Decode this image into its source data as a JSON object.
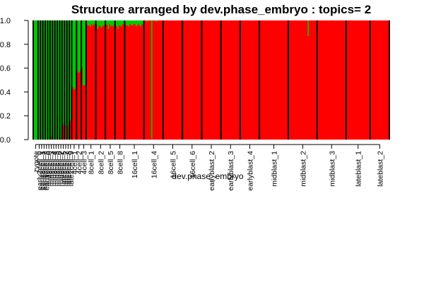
{
  "chart_data": {
    "type": "bar",
    "stacked": true,
    "title": "Structure arranged by dev.phase_embryo : topics= 2",
    "xlabel": "dev.phase_embryo",
    "ylabel": "",
    "ylim": [
      0,
      1
    ],
    "yticks": [
      "0.0",
      "0.2",
      "0.4",
      "0.6",
      "0.8",
      "1.0"
    ],
    "colors": {
      "topic1": "#ff0000",
      "topic2": "#00c800",
      "separator": "#000000"
    },
    "series": [
      {
        "name": ""
      },
      {
        "name": ""
      }
    ],
    "groups": [
      {
        "label": "zygote",
        "n": 4
      },
      {
        "label": "early2cell_0",
        "n": 2
      },
      {
        "label": "early2cell_1",
        "n": 2
      },
      {
        "label": "early2cell_2",
        "n": 2
      },
      {
        "label": "early2cell_3",
        "n": 2
      },
      {
        "label": "mid2cell_0",
        "n": 2
      },
      {
        "label": "mid2cell_3",
        "n": 2
      },
      {
        "label": "mid2cell_4",
        "n": 2
      },
      {
        "label": "mid2cell_5",
        "n": 2
      },
      {
        "label": "mid2cell_6",
        "n": 2
      },
      {
        "label": "mid2cell_7",
        "n": 2
      },
      {
        "label": "late2cell_5",
        "n": 2
      },
      {
        "label": "late2cell_7",
        "n": 2
      },
      {
        "label": "late2cell_8",
        "n": 2
      },
      {
        "label": "late2cell_9",
        "n": 2
      },
      {
        "label": "4cell_1",
        "n": 4
      },
      {
        "label": "4cell_2",
        "n": 4
      },
      {
        "label": "4cell_3",
        "n": 4
      },
      {
        "label": "8cell_1",
        "n": 8
      },
      {
        "label": "8cell_2",
        "n": 8
      },
      {
        "label": "8cell_5",
        "n": 8
      },
      {
        "label": "8cell_8",
        "n": 8
      },
      {
        "label": "16cell_1",
        "n": 16
      },
      {
        "label": "16cell_4",
        "n": 16
      },
      {
        "label": "16cell_5",
        "n": 16
      },
      {
        "label": "16cell_6",
        "n": 16
      },
      {
        "label": "earlyblast_2",
        "n": 16
      },
      {
        "label": "earlyblast_3",
        "n": 16
      },
      {
        "label": "earlyblast_4",
        "n": 16
      },
      {
        "label": "midblast_1",
        "n": 24
      },
      {
        "label": "midblast_2",
        "n": 24
      },
      {
        "label": "midblast_3",
        "n": 24
      },
      {
        "label": "lateblast_1",
        "n": 20
      },
      {
        "label": "lateblast_2",
        "n": 16
      }
    ],
    "topic1_by_group": [
      [
        0.0,
        0.0,
        0.0,
        0.0
      ],
      [
        0.0,
        0.0
      ],
      [
        0.0,
        0.0
      ],
      [
        0.0,
        0.0
      ],
      [
        0.0,
        0.0
      ],
      [
        0.0,
        0.0
      ],
      [
        0.0,
        0.03
      ],
      [
        0.0,
        0.0
      ],
      [
        0.0,
        0.0
      ],
      [
        0.0,
        0.0
      ],
      [
        0.02,
        0.0
      ],
      [
        0.13,
        0.11
      ],
      [
        0.12,
        0.0
      ],
      [
        0.12,
        0.0
      ],
      [
        0.17,
        0.15
      ],
      [
        0.42,
        0.44,
        0.42,
        0.43
      ],
      [
        0.58,
        0.56,
        0.57,
        0.59
      ],
      [
        0.61,
        0.46,
        0.46,
        0.45
      ],
      [
        0.97,
        0.96,
        0.96,
        0.95,
        0.97,
        0.96,
        0.97,
        0.95
      ],
      [
        0.97,
        0.93,
        0.95,
        0.96,
        0.94,
        0.95,
        0.96,
        0.96
      ],
      [
        0.97,
        0.96,
        0.93,
        0.97,
        0.95,
        0.96,
        0.95,
        0.97
      ],
      [
        0.96,
        0.95,
        0.93,
        0.96,
        0.96,
        0.95,
        0.97,
        0.96
      ],
      [
        0.97,
        0.96,
        0.96,
        0.95,
        0.97,
        0.96,
        0.96,
        0.97,
        0.97,
        0.95,
        0.96,
        0.97,
        0.96,
        0.95,
        0.97,
        0.96
      ],
      [
        1.0,
        1.0,
        0.99,
        1.0,
        1.0,
        1.0,
        0.01,
        1.0,
        1.0,
        1.0,
        0.99,
        1.0,
        1.0,
        1.0,
        1.0,
        1.0
      ],
      [
        1.0,
        1.0,
        1.0,
        1.0,
        1.0,
        1.0,
        1.0,
        1.0,
        1.0,
        1.0,
        1.0,
        1.0,
        1.0,
        1.0,
        1.0,
        1.0
      ],
      [
        1.0,
        1.0,
        1.0,
        1.0,
        1.0,
        1.0,
        1.0,
        1.0,
        1.0,
        1.0,
        1.0,
        1.0,
        1.0,
        1.0,
        1.0,
        1.0
      ],
      [
        1.0,
        1.0,
        1.0,
        1.0,
        1.0,
        1.0,
        1.0,
        1.0,
        1.0,
        1.0,
        1.0,
        1.0,
        1.0,
        1.0,
        1.0,
        1.0
      ],
      [
        1.0,
        1.0,
        1.0,
        1.0,
        1.0,
        1.0,
        1.0,
        1.0,
        1.0,
        1.0,
        1.0,
        1.0,
        1.0,
        1.0,
        1.0,
        1.0
      ],
      [
        1.0,
        1.0,
        1.0,
        1.0,
        1.0,
        1.0,
        1.0,
        1.0,
        1.0,
        1.0,
        1.0,
        1.0,
        1.0,
        1.0,
        1.0,
        1.0
      ],
      [
        1.0,
        1.0,
        1.0,
        1.0,
        1.0,
        1.0,
        1.0,
        1.0,
        1.0,
        1.0,
        1.0,
        1.0,
        1.0,
        1.0,
        1.0,
        1.0,
        1.0,
        1.0,
        1.0,
        1.0,
        1.0,
        1.0,
        1.0,
        1.0
      ],
      [
        1.0,
        1.0,
        1.0,
        1.0,
        1.0,
        1.0,
        1.0,
        1.0,
        1.0,
        1.0,
        1.0,
        1.0,
        1.0,
        1.0,
        1.0,
        1.0,
        0.87,
        1.0,
        1.0,
        1.0,
        1.0,
        1.0,
        1.0,
        1.0
      ],
      [
        1.0,
        1.0,
        1.0,
        1.0,
        1.0,
        1.0,
        1.0,
        1.0,
        1.0,
        1.0,
        1.0,
        1.0,
        1.0,
        1.0,
        1.0,
        1.0,
        1.0,
        1.0,
        1.0,
        1.0,
        1.0,
        1.0,
        1.0,
        1.0
      ],
      [
        1.0,
        1.0,
        1.0,
        1.0,
        1.0,
        1.0,
        1.0,
        1.0,
        1.0,
        1.0,
        1.0,
        1.0,
        1.0,
        1.0,
        1.0,
        1.0,
        1.0,
        1.0,
        1.0,
        1.0
      ],
      [
        1.0,
        1.0,
        1.0,
        1.0,
        1.0,
        1.0,
        1.0,
        1.0,
        1.0,
        1.0,
        1.0,
        1.0,
        1.0,
        1.0,
        1.0,
        1.0
      ]
    ]
  }
}
